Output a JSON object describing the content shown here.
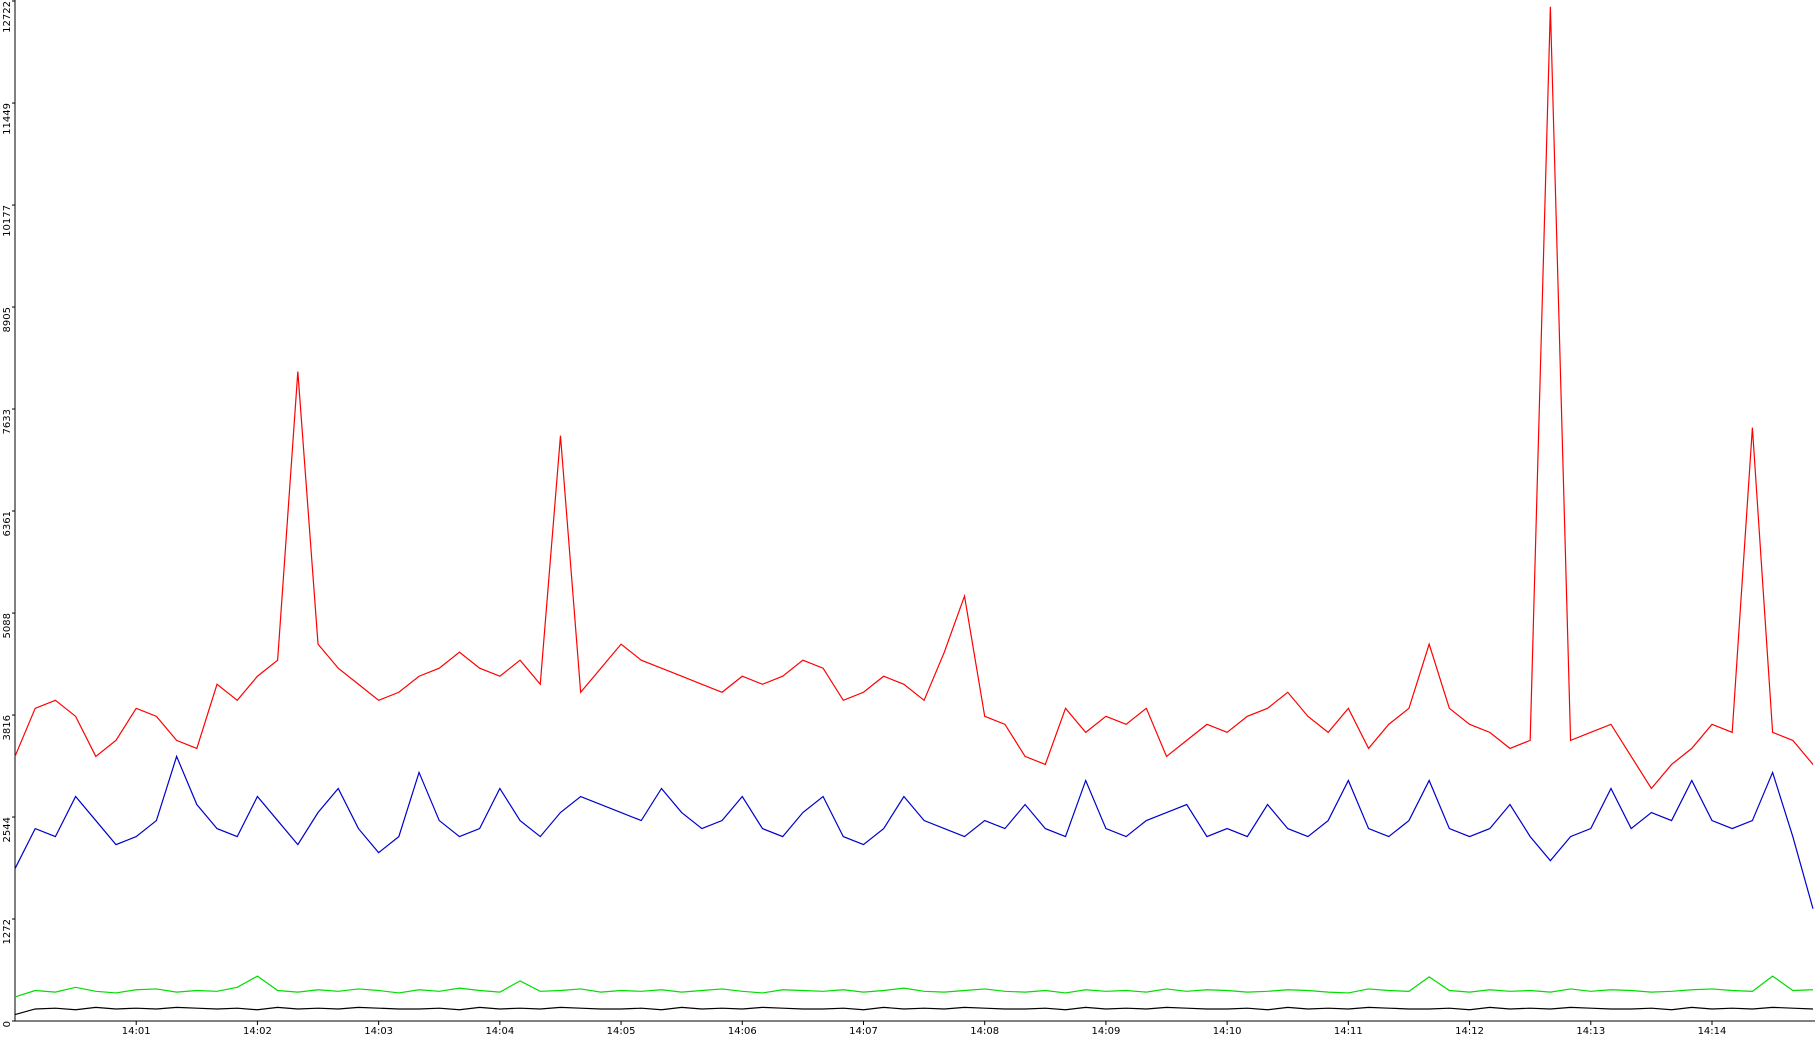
{
  "chart_data": {
    "type": "line",
    "categories": [
      null,
      null,
      null,
      null,
      null,
      null,
      "14:01",
      null,
      null,
      null,
      null,
      null,
      "14:02",
      null,
      null,
      null,
      null,
      null,
      "14:03",
      null,
      null,
      null,
      null,
      null,
      "14:04",
      null,
      null,
      null,
      null,
      null,
      "14:05",
      null,
      null,
      null,
      null,
      null,
      "14:06",
      null,
      null,
      null,
      null,
      null,
      "14:07",
      null,
      null,
      null,
      null,
      null,
      "14:08",
      null,
      null,
      null,
      null,
      null,
      "14:09",
      null,
      null,
      null,
      null,
      null,
      "14:10",
      null,
      null,
      null,
      null,
      null,
      "14:11",
      null,
      null,
      null,
      null,
      null,
      "14:12",
      null,
      null,
      null,
      null,
      null,
      "14:13",
      null,
      null,
      null,
      null,
      null,
      "14:14",
      null,
      null,
      null,
      null,
      null
    ],
    "series": [
      {
        "color": "#ff0000",
        "values": [
          3300,
          3900,
          4000,
          3800,
          3300,
          3500,
          3900,
          3800,
          3500,
          3400,
          4200,
          4000,
          4300,
          4500,
          8100,
          4700,
          4400,
          4200,
          4000,
          4100,
          4300,
          4400,
          4600,
          4400,
          4300,
          4500,
          4200,
          7300,
          4100,
          4400,
          4700,
          4500,
          4400,
          4300,
          4200,
          4100,
          4300,
          4200,
          4300,
          4500,
          4400,
          4000,
          4100,
          4300,
          4200,
          4000,
          4600,
          5300,
          3800,
          3700,
          3300,
          3200,
          3900,
          3600,
          3800,
          3700,
          3900,
          3300,
          3500,
          3700,
          3600,
          3800,
          3900,
          4100,
          3800,
          3600,
          3900,
          3400,
          3700,
          3900,
          4700,
          3900,
          3700,
          3600,
          3400,
          3500,
          12650,
          3500,
          3600,
          3700,
          3300,
          2900,
          3200,
          3400,
          3700,
          3600,
          7400,
          3600,
          3500,
          3200
        ]
      },
      {
        "color": "#0000cc",
        "values": [
          1900,
          2400,
          2300,
          2800,
          2500,
          2200,
          2300,
          2500,
          3300,
          2700,
          2400,
          2300,
          2800,
          2500,
          2200,
          2600,
          2900,
          2400,
          2100,
          2300,
          3100,
          2500,
          2300,
          2400,
          2900,
          2500,
          2300,
          2600,
          2800,
          2700,
          2600,
          2500,
          2900,
          2600,
          2400,
          2500,
          2800,
          2400,
          2300,
          2600,
          2800,
          2300,
          2200,
          2400,
          2800,
          2500,
          2400,
          2300,
          2500,
          2400,
          2700,
          2400,
          2300,
          3000,
          2400,
          2300,
          2500,
          2600,
          2700,
          2300,
          2400,
          2300,
          2700,
          2400,
          2300,
          2500,
          3000,
          2400,
          2300,
          2500,
          3000,
          2400,
          2300,
          2400,
          2700,
          2300,
          2000,
          2300,
          2400,
          2900,
          2400,
          2600,
          2500,
          3000,
          2500,
          2400,
          2500,
          3100,
          2300,
          1400
        ]
      },
      {
        "color": "#00dd00",
        "values": [
          300,
          380,
          360,
          420,
          370,
          350,
          390,
          400,
          360,
          380,
          370,
          420,
          560,
          380,
          360,
          390,
          370,
          400,
          380,
          350,
          390,
          370,
          410,
          380,
          360,
          500,
          370,
          380,
          400,
          360,
          380,
          370,
          390,
          360,
          380,
          400,
          370,
          350,
          390,
          380,
          370,
          390,
          360,
          380,
          410,
          370,
          360,
          380,
          400,
          370,
          360,
          380,
          350,
          390,
          370,
          380,
          360,
          400,
          370,
          390,
          380,
          360,
          370,
          390,
          380,
          360,
          350,
          400,
          380,
          370,
          550,
          380,
          360,
          390,
          370,
          380,
          360,
          400,
          370,
          390,
          380,
          360,
          370,
          390,
          400,
          380,
          370,
          560,
          380,
          390
        ]
      },
      {
        "color": "#000000",
        "values": [
          80,
          150,
          160,
          140,
          170,
          150,
          160,
          150,
          170,
          160,
          150,
          160,
          140,
          170,
          150,
          160,
          150,
          170,
          160,
          150,
          150,
          160,
          140,
          170,
          150,
          160,
          150,
          170,
          160,
          150,
          150,
          160,
          140,
          170,
          150,
          160,
          150,
          170,
          160,
          150,
          150,
          160,
          140,
          170,
          150,
          160,
          150,
          170,
          160,
          150,
          150,
          160,
          140,
          170,
          150,
          160,
          150,
          170,
          160,
          150,
          150,
          160,
          140,
          170,
          150,
          160,
          150,
          170,
          160,
          150,
          150,
          160,
          140,
          170,
          150,
          160,
          150,
          170,
          160,
          150,
          150,
          160,
          140,
          170,
          150,
          160,
          150,
          170,
          160,
          150
        ]
      }
    ],
    "ylim": [
      0,
      12722
    ],
    "yticks": [
      0,
      1272,
      2544,
      3816,
      5088,
      6361,
      7633,
      8905,
      10177,
      11449,
      12722
    ]
  }
}
